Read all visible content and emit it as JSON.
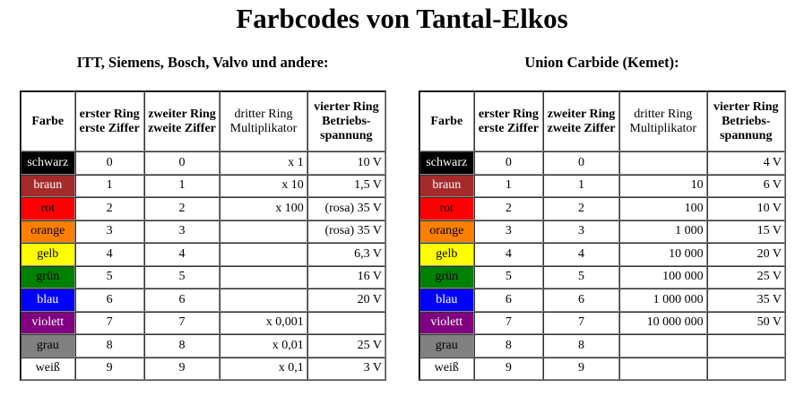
{
  "title": "Farbcodes von Tantal-Elkos",
  "left": {
    "subtitle": "ITT, Siemens, Bosch, Valvo und andere:",
    "headers": [
      "Farbe",
      "erster Ring erste Ziffer",
      "zweiter Ring zweite Ziffer",
      "dritter Ring Multiplikator",
      "vierter Ring Betriebs- spannung"
    ],
    "rows": [
      [
        "schwarz",
        "0",
        "0",
        "x 1",
        "10 V"
      ],
      [
        "braun",
        "1",
        "1",
        "x 10",
        "1,5 V"
      ],
      [
        "rot",
        "2",
        "2",
        "x 100",
        "(rosa) 35 V"
      ],
      [
        "orange",
        "3",
        "3",
        "",
        "(rosa) 35 V"
      ],
      [
        "gelb",
        "4",
        "4",
        "",
        "6,3 V"
      ],
      [
        "grün",
        "5",
        "5",
        "",
        "16 V"
      ],
      [
        "blau",
        "6",
        "6",
        "",
        "20 V"
      ],
      [
        "violett",
        "7",
        "7",
        "x 0,001",
        ""
      ],
      [
        "grau",
        "8",
        "8",
        "x 0,01",
        "25 V"
      ],
      [
        "weiß",
        "9",
        "9",
        "x 0,1",
        "3 V"
      ]
    ]
  },
  "right": {
    "subtitle": "Union Carbide (Kemet):",
    "headers": [
      "Farbe",
      "erster Ring erste Ziffer",
      "zweiter Ring zweite Ziffer",
      "dritter Ring Multiplikator",
      "vierter Ring Betriebs- spannung"
    ],
    "rows": [
      [
        "schwarz",
        "0",
        "0",
        "",
        "4 V"
      ],
      [
        "braun",
        "1",
        "1",
        "10",
        "6 V"
      ],
      [
        "rot",
        "2",
        "2",
        "100",
        "10 V"
      ],
      [
        "orange",
        "3",
        "3",
        "1 000",
        "15 V"
      ],
      [
        "gelb",
        "4",
        "4",
        "10 000",
        "20 V"
      ],
      [
        "grün",
        "5",
        "5",
        "100 000",
        "25 V"
      ],
      [
        "blau",
        "6",
        "6",
        "1 000 000",
        "35 V"
      ],
      [
        "violett",
        "7",
        "7",
        "10 000 000",
        "50 V"
      ],
      [
        "grau",
        "8",
        "8",
        "",
        ""
      ],
      [
        "weiß",
        "9",
        "9",
        "",
        ""
      ]
    ]
  },
  "colors": [
    {
      "bg": "#000000",
      "fg": "#ffffff"
    },
    {
      "bg": "#a52a2a",
      "fg": "#ffffff"
    },
    {
      "bg": "#ff0000",
      "fg": "#000000"
    },
    {
      "bg": "#ff8000",
      "fg": "#000000"
    },
    {
      "bg": "#ffff00",
      "fg": "#000000"
    },
    {
      "bg": "#008000",
      "fg": "#000000"
    },
    {
      "bg": "#0000ff",
      "fg": "#ffffff"
    },
    {
      "bg": "#800080",
      "fg": "#ffffff"
    },
    {
      "bg": "#808080",
      "fg": "#000000"
    },
    {
      "bg": "#ffffff",
      "fg": "#000000"
    }
  ]
}
